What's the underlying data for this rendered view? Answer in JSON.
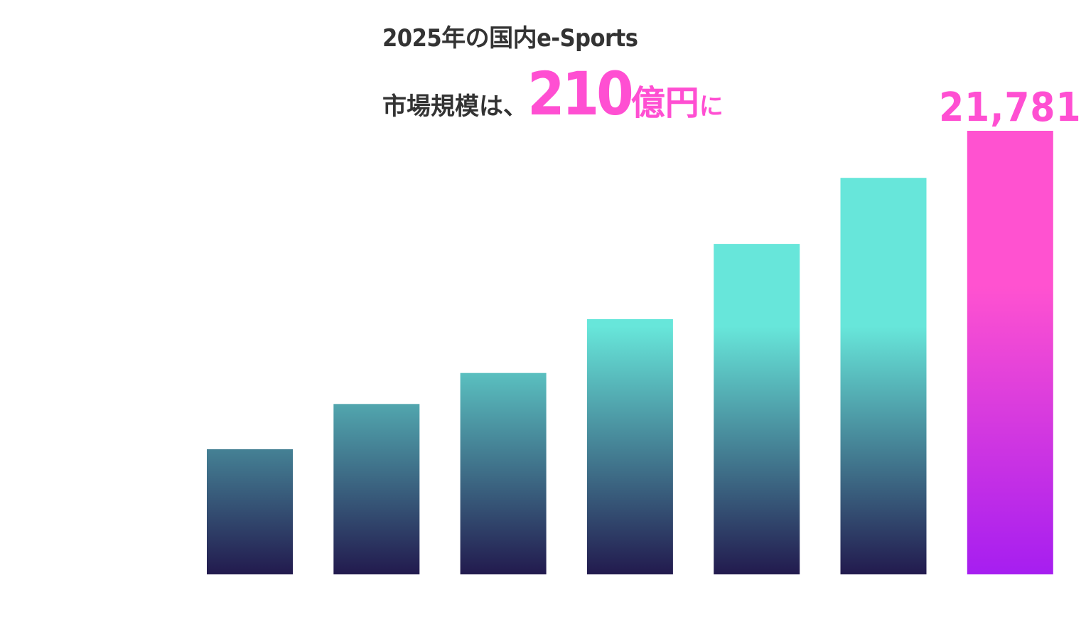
{
  "headline": {
    "line1": "2025年の国内e-Sports",
    "prefix": "市場規模は、",
    "value": "210",
    "unit": "億円",
    "suffix": "に"
  },
  "colors": {
    "accent": "#ff4fd2",
    "bar_top": "#67e6da",
    "bar_bottom": "#221a4e",
    "highlight_top": "#ff52d0",
    "highlight_bottom": "#a61ef0"
  },
  "chart_data": {
    "type": "bar",
    "values": [
      6147,
      8368,
      9890,
      12536,
      16226,
      19470,
      21781
    ],
    "data_labels": [
      "",
      "",
      "",
      "",
      "",
      "",
      "21,781"
    ],
    "highlight_index": 6,
    "ylim": [
      0,
      21781
    ],
    "grid": false,
    "legend": "none"
  }
}
